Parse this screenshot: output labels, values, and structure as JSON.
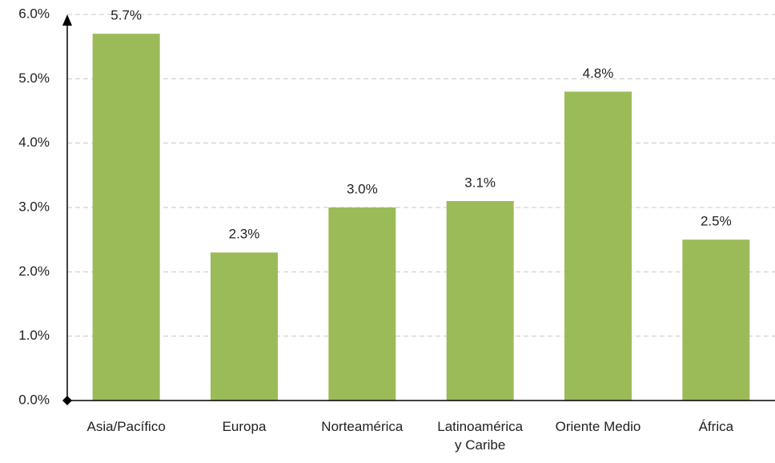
{
  "chart_data": {
    "type": "bar",
    "categories": [
      "Asia/Pacífico",
      "Europa",
      "Norteamérica",
      "Latinoamérica\ny Caribe",
      "Oriente Medio",
      "África"
    ],
    "values": [
      5.7,
      2.3,
      3.0,
      3.1,
      4.8,
      2.5
    ],
    "value_labels": [
      "5.7%",
      "2.3%",
      "3.0%",
      "3.1%",
      "4.8%",
      "2.5%"
    ],
    "color": "#9bbb59",
    "ylim": [
      0,
      6
    ],
    "yticks": [
      {
        "value": 0,
        "label": "0.0%"
      },
      {
        "value": 1,
        "label": "1.0%"
      },
      {
        "value": 2,
        "label": "2.0%"
      },
      {
        "value": 3,
        "label": "3.0%"
      },
      {
        "value": 4,
        "label": "4.0%"
      },
      {
        "value": 5,
        "label": "5.0%"
      },
      {
        "value": 6,
        "label": "6.0%"
      }
    ],
    "grid": true
  }
}
